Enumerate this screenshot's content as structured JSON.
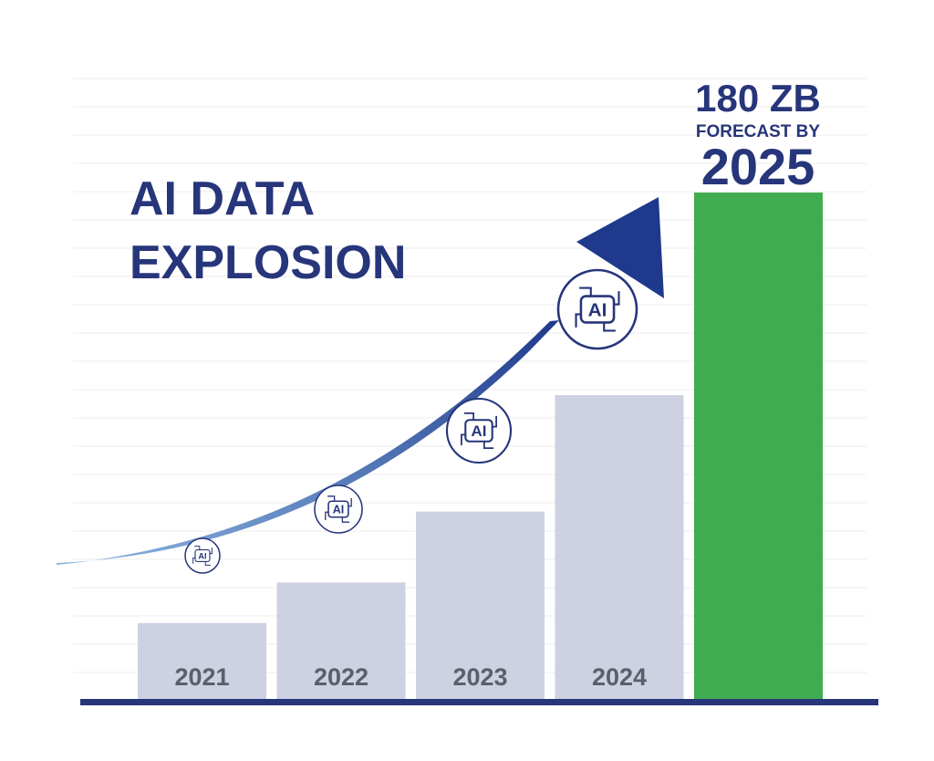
{
  "colors": {
    "title": "#27357a",
    "bar_past": "#cdd1e2",
    "bar_forecast": "#41ab4f",
    "baseline": "#27357a",
    "arrow_start": "#8ab4e0",
    "arrow_end": "#1f3a8c",
    "year_label": "#5b5f6a",
    "grid": "#eeeeee"
  },
  "icons": {
    "ai_badge": "ai-chip-icon"
  },
  "chart_data": {
    "type": "bar",
    "title": [
      "AI DATA",
      "EXPLOSION"
    ],
    "categories": [
      "2021",
      "2022",
      "2023",
      "2024",
      "2025"
    ],
    "values": [
      15,
      23,
      37,
      60,
      100
    ],
    "forecast_index": 4,
    "unit": "relative",
    "ylim": [
      0,
      100
    ],
    "grid": true,
    "callout": {
      "value": "180 ZB",
      "subtitle": "FORECAST BY",
      "year": "2025"
    },
    "trend_arrow": true,
    "ai_badges": [
      "AI",
      "AI",
      "AI",
      "AI"
    ]
  }
}
